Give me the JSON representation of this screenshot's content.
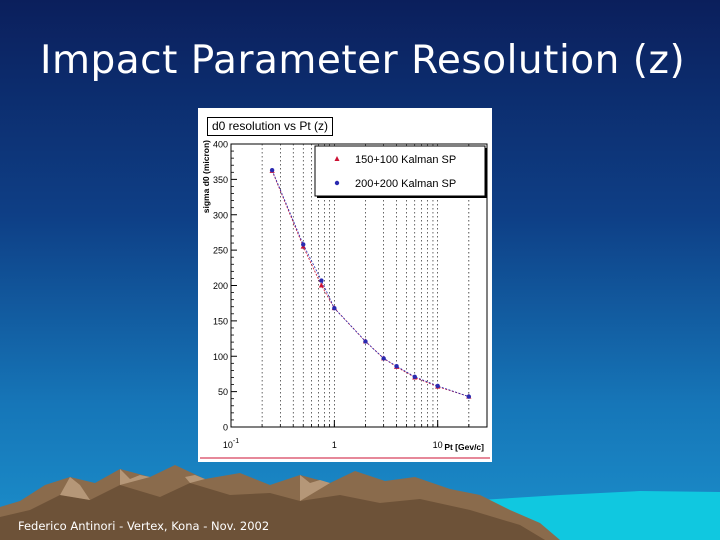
{
  "slide": {
    "title": "Impact Parameter Resolution (z)",
    "footer": "Federico Antinori - Vertex, Kona - Nov. 2002"
  },
  "colors": {
    "series1": "#cc1133",
    "series2": "#2a2ab0",
    "frame": "#000000"
  },
  "chart_data": {
    "type": "scatter",
    "title": "d0 resolution vs Pt (z)",
    "xlabel": "Pt [Gev/c]",
    "ylabel": "sigma d0 (micron)",
    "xscale": "log",
    "xlim": [
      0.1,
      30
    ],
    "ylim": [
      0,
      400
    ],
    "ytick_labels": [
      "0",
      "50",
      "100",
      "150",
      "200",
      "250",
      "300",
      "350",
      "400"
    ],
    "yticks": [
      0,
      50,
      100,
      150,
      200,
      250,
      300,
      350,
      400
    ],
    "xtick_labels": [
      "10 -1",
      "1",
      "10"
    ],
    "xticks": [
      0.1,
      1,
      10
    ],
    "legend_position": "top-right",
    "series": [
      {
        "name": "150+100 Kalman SP",
        "marker": "triangle",
        "x": [
          0.25,
          0.5,
          0.75,
          1.0,
          2.0,
          3.0,
          4.0,
          6.0,
          10.0,
          20.0
        ],
        "y": [
          362,
          255,
          200,
          168,
          121,
          97,
          85,
          70,
          57,
          43
        ]
      },
      {
        "name": "200+200 Kalman SP",
        "marker": "circle",
        "x": [
          0.25,
          0.5,
          0.75,
          1.0,
          2.0,
          3.0,
          4.0,
          6.0,
          10.0,
          20.0
        ],
        "y": [
          363,
          258,
          207,
          168,
          121,
          97,
          86,
          71,
          58,
          43
        ]
      }
    ]
  }
}
